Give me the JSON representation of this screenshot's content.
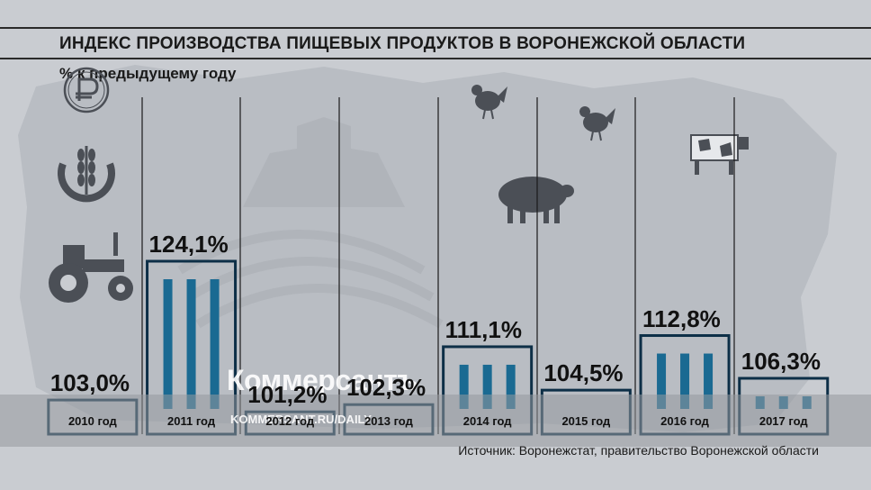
{
  "title": "ИНДЕКС ПРОИЗВОДСТВА ПИЩЕВЫХ ПРОДУКТОВ В ВОРОНЕЖСКОЙ ОБЛАСТИ",
  "subtitle": "% к предыдущему году",
  "source": "Источник: Воронежстат, правительство Воронежской области",
  "watermark": {
    "brand": "Коммерсантъ",
    "url": "KOMMERSANT.RU/DAILY"
  },
  "colors": {
    "accent": "#1a6a92",
    "frame": "#0d2f47",
    "background": "#c9ccd1",
    "text": "#111111"
  },
  "icons": [
    "ruble-icon",
    "wheat-icon",
    "tractor-icon",
    "chicken-icon",
    "pig-icon",
    "cow-icon"
  ],
  "chart_data": {
    "type": "bar",
    "categories": [
      "2010 год",
      "2011 год",
      "2012 год",
      "2013 год",
      "2014 год",
      "2015 год",
      "2016 год",
      "2017 год"
    ],
    "values": [
      103.0,
      124.1,
      101.2,
      102.3,
      111.1,
      104.5,
      112.8,
      106.3
    ],
    "value_labels": [
      "103,0%",
      "124,1%",
      "101,2%",
      "102,3%",
      "111,1%",
      "104,5%",
      "112,8%",
      "106,3%"
    ],
    "title": "ИНДЕКС ПРОИЗВОДСТВА ПИЩЕВЫХ ПРОДУКТОВ В ВОРОНЕЖСКОЙ ОБЛАСТИ",
    "ylabel": "% к предыдущему году",
    "grid": false
  }
}
